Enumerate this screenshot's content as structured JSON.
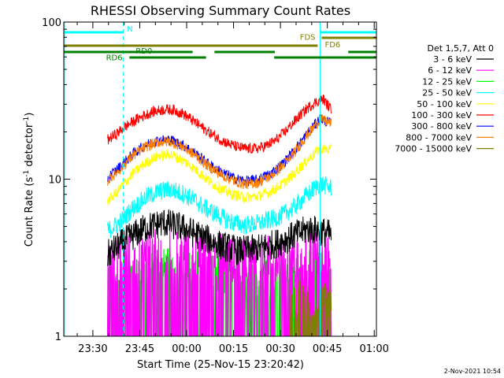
{
  "chart_data": {
    "type": "line",
    "title": "RHESSI Observing Summary Count Rates",
    "xlabel": "Start Time (25-Nov-15 23:20:42)",
    "ylabel": "Count Rate (s",
    "ylabel_sup": "-1",
    "ylabel_end": " detector",
    "ylabel_sup2": "-1",
    "ylabel_close": ")",
    "y_scale": "log",
    "ylim": [
      1,
      100
    ],
    "xlim_minutes": [
      0,
      100
    ],
    "x_ticks": [
      {
        "minute": 9.3,
        "label": "23:30"
      },
      {
        "minute": 24.3,
        "label": "23:45"
      },
      {
        "minute": 39.3,
        "label": "00:00"
      },
      {
        "minute": 54.3,
        "label": "00:15"
      },
      {
        "minute": 69.3,
        "label": "00:30"
      },
      {
        "minute": 84.3,
        "label": "00:45"
      },
      {
        "minute": 99.3,
        "label": "01:00"
      }
    ],
    "y_ticks": [
      {
        "value": 1,
        "label": "1"
      },
      {
        "value": 10,
        "label": "10"
      },
      {
        "value": 100,
        "label": "100"
      }
    ],
    "legend_title": "Det 1,5,7, Att 0",
    "legend_position": "right",
    "series": [
      {
        "name": "3 - 6 keV",
        "color": "#000000",
        "x": [
          14,
          20,
          26,
          32,
          38,
          44,
          50,
          56,
          62,
          68,
          74,
          78,
          82,
          85.6
        ],
        "y": [
          3.3,
          4.1,
          4.9,
          5.3,
          4.9,
          4.3,
          3.8,
          3.5,
          3.6,
          3.9,
          4.4,
          4.8,
          4.7,
          4.4
        ]
      },
      {
        "name": "6 - 12 keV",
        "color": "#ff00ff",
        "x": [
          14,
          24,
          34,
          44,
          54,
          64,
          74,
          85.6
        ],
        "y": [
          3.0,
          3.3,
          3.5,
          3.4,
          3.1,
          3.1,
          3.3,
          3.4
        ]
      },
      {
        "name": "12 - 25 keV",
        "color": "#00ff00",
        "x": [
          14,
          24,
          34,
          44,
          54,
          64,
          74,
          85.6
        ],
        "y": [
          2.4,
          2.5,
          2.6,
          2.5,
          2.4,
          2.4,
          2.5,
          2.6
        ]
      },
      {
        "name": "25 - 50 keV",
        "color": "#00ffff",
        "x": [
          14,
          18,
          22,
          26,
          30,
          34,
          38,
          42,
          46,
          50,
          54,
          58,
          62,
          66,
          70,
          74,
          78,
          82,
          85.6
        ],
        "y": [
          4.7,
          5.3,
          6.5,
          7.6,
          8.3,
          8.6,
          8.1,
          7.3,
          6.4,
          5.8,
          5.3,
          5.1,
          5.2,
          5.5,
          5.9,
          6.7,
          8.0,
          9.4,
          8.8
        ]
      },
      {
        "name": "50 - 100 keV",
        "color": "#ffff00",
        "x": [
          14,
          18,
          22,
          26,
          30,
          34,
          38,
          42,
          46,
          50,
          54,
          58,
          62,
          66,
          70,
          74,
          78,
          82,
          85.6
        ],
        "y": [
          7.2,
          8.7,
          10.8,
          12.6,
          14.0,
          14.4,
          13.2,
          11.6,
          9.9,
          8.7,
          8.0,
          7.6,
          7.8,
          8.3,
          9.3,
          11.0,
          13.3,
          15.7,
          15.3
        ]
      },
      {
        "name": "100 - 300 keV",
        "color": "#ff0000",
        "x": [
          14,
          17,
          20,
          23,
          26,
          29,
          32,
          35,
          38,
          41,
          44,
          47,
          50,
          53,
          56,
          59,
          62,
          65,
          68,
          71,
          74,
          77,
          80,
          83,
          85.6
        ],
        "y": [
          17.8,
          19.5,
          21.8,
          23.8,
          25.6,
          27.0,
          27.8,
          27.6,
          26.2,
          23.8,
          21.5,
          19.5,
          17.9,
          16.7,
          15.9,
          15.6,
          15.7,
          16.4,
          17.8,
          20.3,
          23.6,
          27.2,
          30.5,
          32.3,
          27.5
        ]
      },
      {
        "name": "300 - 800 keV",
        "color": "#0000ff",
        "x": [
          14,
          18,
          22,
          26,
          30,
          34,
          38,
          42,
          46,
          50,
          54,
          58,
          62,
          66,
          70,
          74,
          78,
          82,
          85.6
        ],
        "y": [
          10.2,
          12.0,
          14.4,
          16.4,
          17.6,
          17.8,
          16.5,
          14.6,
          12.6,
          11.2,
          10.2,
          9.7,
          9.9,
          10.8,
          12.5,
          15.4,
          19.6,
          24.3,
          22.5
        ]
      },
      {
        "name": "800 - 7000 keV",
        "color": "#ff8000",
        "x": [
          14,
          18,
          22,
          26,
          30,
          34,
          38,
          42,
          46,
          50,
          54,
          58,
          62,
          66,
          70,
          74,
          78,
          82,
          85.6
        ],
        "y": [
          9.8,
          11.6,
          14.0,
          16.0,
          17.2,
          17.4,
          16.1,
          14.2,
          12.2,
          10.8,
          9.8,
          9.3,
          9.5,
          10.4,
          12.1,
          15.0,
          19.2,
          24.0,
          22.8
        ]
      },
      {
        "name": "7000 - 15000 keV",
        "color": "#808000",
        "x": [
          72,
          76,
          80,
          84,
          85.6
        ],
        "y": [
          1.6,
          1.7,
          1.6,
          1.7,
          1.6
        ]
      }
    ],
    "flag_lines": [
      {
        "label": "N",
        "color": "#00ffff",
        "kind": "solid",
        "y_offset": 0,
        "segments": [
          [
            0,
            19
          ]
        ]
      },
      {
        "label": "",
        "color": "#00ffff",
        "kind": "solid",
        "y_offset": 0,
        "segments": [
          [
            82,
            100
          ]
        ]
      },
      {
        "label": "FDS",
        "color": "#808000",
        "kind": "solid",
        "y_offset": 1,
        "segments": [
          [
            82.5,
            100
          ]
        ]
      },
      {
        "label": "FD6",
        "color": "#808000",
        "kind": "solid",
        "y_offset": 2,
        "segments": [
          [
            0,
            81.2
          ]
        ]
      },
      {
        "label": "RD0",
        "color": "#008000",
        "kind": "solid",
        "y_offset": 3,
        "segments": [
          [
            0,
            41.2
          ],
          [
            48.2,
            67.5
          ],
          [
            91,
            100
          ]
        ]
      },
      {
        "label": "RD6",
        "color": "#008000",
        "kind": "solid",
        "y_offset": 4,
        "segments": [
          [
            21,
            45.5
          ],
          [
            67.3,
            100
          ]
        ]
      }
    ],
    "flag_labels": [
      {
        "text": "N",
        "color": "#00ffff",
        "minute": 20.2,
        "value": 87
      },
      {
        "text": "FDS",
        "color": "#808000",
        "minute": 75.5,
        "value": 77
      },
      {
        "text": "FD6",
        "color": "#808000",
        "minute": 83.5,
        "value": 69
      },
      {
        "text": "RD0",
        "color": "#008000",
        "minute": 23.0,
        "value": 63
      },
      {
        "text": "RD6",
        "color": "#008000",
        "minute": 13.5,
        "value": 57
      }
    ],
    "vertical_markers": [
      {
        "minute": 0.2,
        "color": "#00ffff",
        "style": "solid"
      },
      {
        "minute": 19.0,
        "color": "#00ffff",
        "style": "dashed"
      },
      {
        "minute": 82.0,
        "color": "#00ffff",
        "style": "solid"
      },
      {
        "minute": 100,
        "color": "#00ffff",
        "style": "dashed"
      }
    ],
    "data_range_minutes": [
      14,
      85.6
    ]
  },
  "footer": {
    "timestamp": "2-Nov-2021 10:54"
  }
}
